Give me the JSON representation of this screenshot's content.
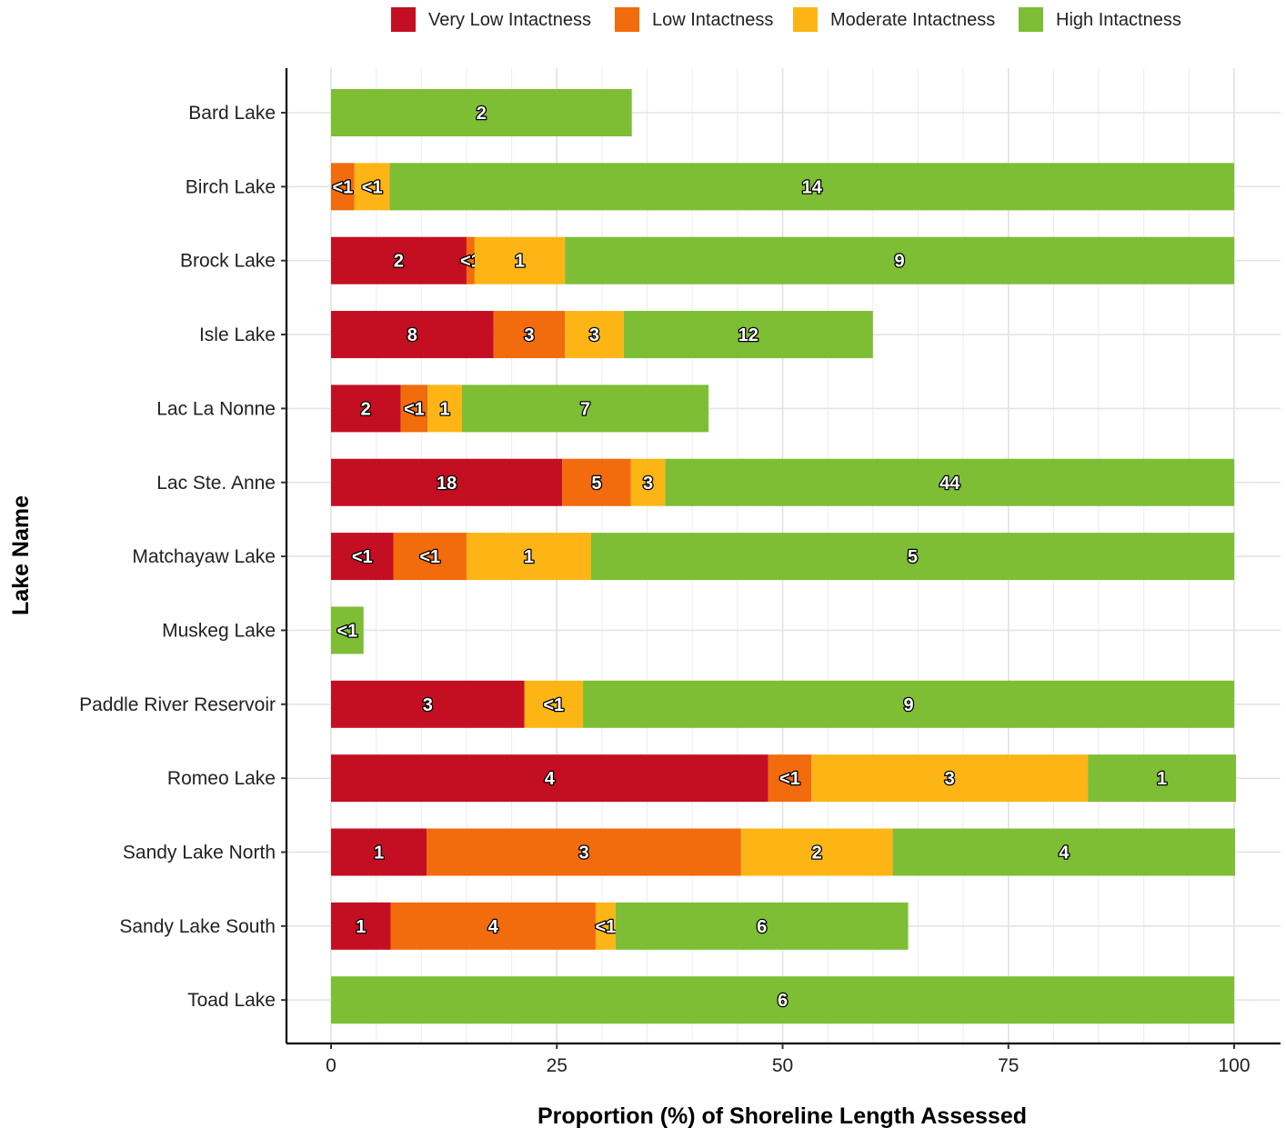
{
  "chart_data": {
    "type": "bar",
    "orientation": "horizontal",
    "stacked": true,
    "title": "",
    "xlabel": "Proportion (%) of Shoreline Length Assessed",
    "ylabel": "Lake Name",
    "xlim": [
      0,
      100
    ],
    "x_ticks": [
      0,
      25,
      50,
      75,
      100
    ],
    "grid": true,
    "legend_position": "top",
    "categories": [
      "Bard Lake",
      "Birch Lake",
      "Brock Lake",
      "Isle Lake",
      "Lac La Nonne",
      "Lac Ste. Anne",
      "Matchayaw Lake",
      "Muskeg Lake",
      "Paddle River Reservoir",
      "Romeo Lake",
      "Sandy Lake North",
      "Sandy Lake South",
      "Toad Lake"
    ],
    "series": [
      {
        "name": "Very Low Intactness",
        "color": "#C40F22",
        "values": [
          0,
          0,
          15,
          18,
          7.7,
          25.6,
          6.9,
          0,
          21.4,
          48.4,
          10.6,
          6.6,
          0
        ],
        "labels": [
          "",
          "",
          "2",
          "8",
          "2",
          "18",
          "<1",
          "",
          "3",
          "4",
          "1",
          "1",
          ""
        ]
      },
      {
        "name": "Low Intactness",
        "color": "#F26B0C",
        "values": [
          0,
          2.6,
          0.9,
          7.9,
          3.0,
          7.6,
          8.1,
          0,
          0,
          4.8,
          34.8,
          22.7,
          0
        ],
        "labels": [
          "",
          "<1",
          "<1",
          "3",
          "<1",
          "5",
          "<1",
          "",
          "",
          "<1",
          "3",
          "4",
          ""
        ]
      },
      {
        "name": "Moderate Intactness",
        "color": "#FDB516",
        "values": [
          0,
          3.9,
          10,
          6.5,
          3.8,
          3.8,
          13.8,
          0,
          6.5,
          30.6,
          16.8,
          2.2,
          0
        ],
        "labels": [
          "",
          "<1",
          "1",
          "3",
          "1",
          "3",
          "1",
          "",
          "<1",
          "3",
          "2",
          "<1",
          ""
        ]
      },
      {
        "name": "High Intactness",
        "color": "#7DBE35",
        "values": [
          33.3,
          93.5,
          74.1,
          27.6,
          27.3,
          63.0,
          71.2,
          3.6,
          72.1,
          16.4,
          37.9,
          32.4,
          100
        ],
        "labels": [
          "2",
          "14",
          "9",
          "12",
          "7",
          "44",
          "5",
          "<1",
          "9",
          "1",
          "4",
          "6",
          "6"
        ]
      }
    ]
  }
}
